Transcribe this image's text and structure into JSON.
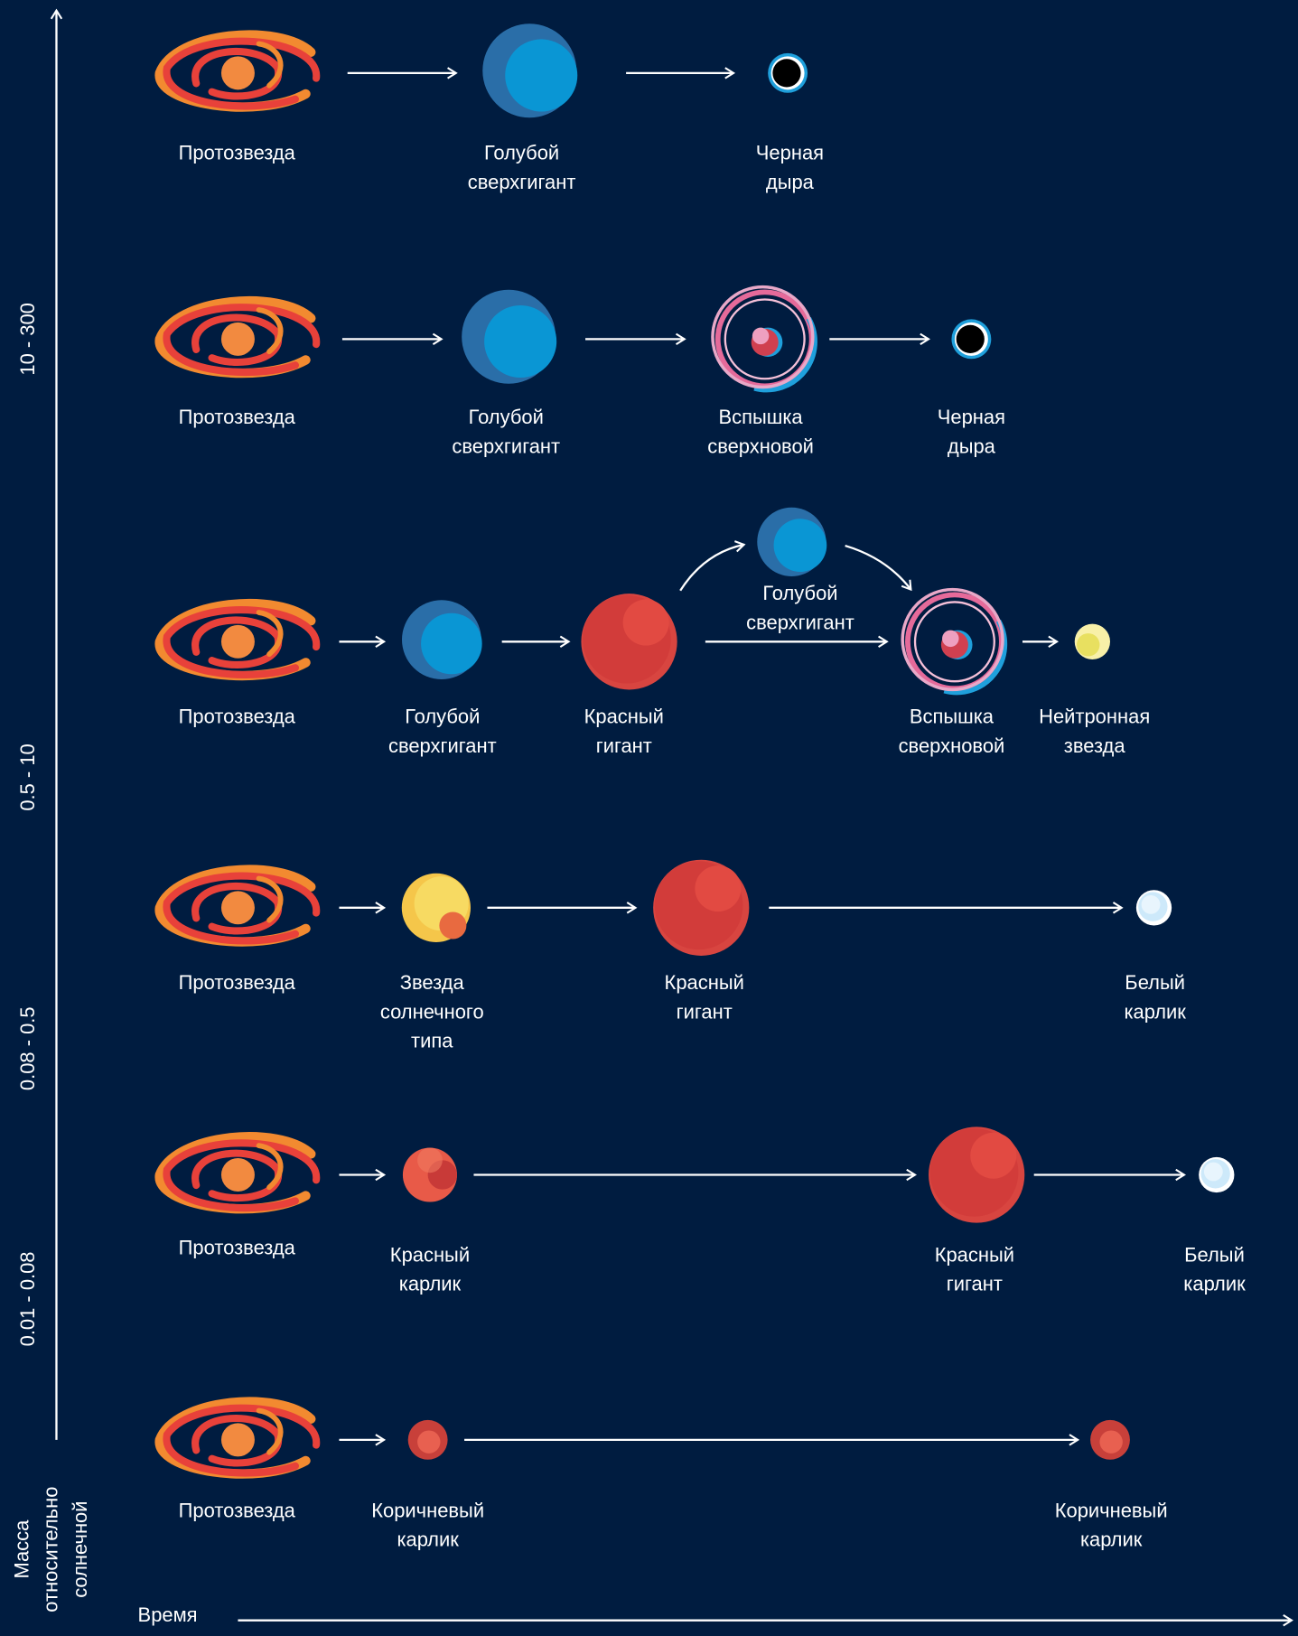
{
  "axis": {
    "y_label": [
      "Масса",
      "относительно",
      "солнечной"
    ],
    "x_label": "Время",
    "mass_ranges": [
      "10 - 300",
      "0.5 - 10",
      "0.08 - 0.5",
      "0.01 - 0.08"
    ]
  },
  "rows": [
    {
      "stages": [
        {
          "label": [
            "Протозвезда"
          ]
        },
        {
          "label": [
            "Голубой",
            "сверхгигант"
          ]
        },
        {
          "label": [
            "Черная",
            "дыра"
          ]
        }
      ]
    },
    {
      "stages": [
        {
          "label": [
            "Протозвезда"
          ]
        },
        {
          "label": [
            "Голубой",
            "сверхгигант"
          ]
        },
        {
          "label": [
            "Вспышка",
            "сверхновой"
          ]
        },
        {
          "label": [
            "Черная",
            "дыра"
          ]
        }
      ]
    },
    {
      "stages": [
        {
          "label": [
            "Протозвезда"
          ]
        },
        {
          "label": [
            "Голубой",
            "сверхгигант"
          ]
        },
        {
          "label": [
            "Красный",
            "гигант"
          ]
        },
        {
          "label": [
            "Вспышка",
            "сверхновой"
          ]
        },
        {
          "label": [
            "Нейтронная",
            "звезда"
          ]
        }
      ],
      "branch": {
        "label": [
          "Голубой",
          "сверхгигант"
        ]
      }
    },
    {
      "stages": [
        {
          "label": [
            "Протозвезда"
          ]
        },
        {
          "label": [
            "Звезда",
            "солнечного",
            "типа"
          ]
        },
        {
          "label": [
            "Красный",
            "гигант"
          ]
        },
        {
          "label": [
            "Белый",
            "карлик"
          ]
        }
      ]
    },
    {
      "stages": [
        {
          "label": [
            "Протозвезда"
          ]
        },
        {
          "label": [
            "Красный",
            "карлик"
          ]
        },
        {
          "label": [
            "Красный",
            "гигант"
          ]
        },
        {
          "label": [
            "Белый",
            "карлик"
          ]
        }
      ]
    },
    {
      "stages": [
        {
          "label": [
            "Протозвезда"
          ]
        },
        {
          "label": [
            "Коричневый",
            "карлик"
          ]
        },
        {
          "label": [
            "Коричневый",
            "карлик"
          ]
        }
      ]
    }
  ]
}
